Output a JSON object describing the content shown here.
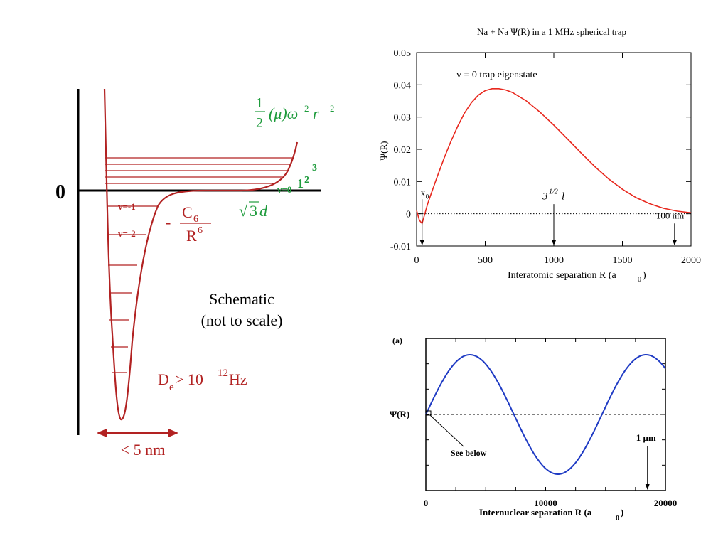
{
  "schematic": {
    "zero_label": "0",
    "levels": [
      "v=-1",
      "v=-2"
    ],
    "harmonic": {
      "frac_num": "1",
      "frac_den": "2",
      "expr": "(μ)ω",
      "exp1": "2",
      "r": "r",
      "exp2": "2"
    },
    "c6": {
      "minus": "-",
      "numerator": "C",
      "num_sub": "6",
      "denominator": "R",
      "den_sup": "6"
    },
    "v0_label": {
      "base": "v=0",
      "exps": "1",
      "sup1": "2",
      "sup2": "3"
    },
    "sqrt3d": {
      "radical": "√",
      "value": "3",
      "d": "d"
    },
    "note_line1": "Schematic",
    "note_line2": "(not to scale)",
    "depth": {
      "D": "D",
      "sub": "e",
      "rest": " > 10",
      "sup": "12",
      "unit": " Hz"
    },
    "width_label": "< 5 nm",
    "colors": {
      "curve": "#b22222",
      "green": "#1e9b3c"
    }
  },
  "chart_data": [
    {
      "type": "line",
      "title": "Na + Na Ψ(R) in a 1 MHz spherical trap",
      "xlabel": "Interatomic separation R (a",
      "xlabel_sub": "0",
      "xlabel_close": ")",
      "ylabel": "Ψ(R)",
      "xlim": [
        0,
        2000
      ],
      "ylim": [
        -0.01,
        0.05
      ],
      "xticks": [
        0,
        500,
        1000,
        1500,
        2000
      ],
      "yticks": [
        -0.01,
        0,
        0.01,
        0.02,
        0.03,
        0.04,
        0.05
      ],
      "ytick_labels": [
        "-0.01",
        "0",
        "0.01",
        "0.02",
        "0.03",
        "0.04",
        "0.05"
      ],
      "annotation": "v = 0 trap eigenstate",
      "markers": [
        {
          "x": 40,
          "label": "x",
          "label_sub": "0"
        },
        {
          "x": 1000,
          "label": "3",
          "label_sup": "1/2",
          "label_tail": "l"
        },
        {
          "x": 1880,
          "label": "100 nm"
        }
      ],
      "series": [
        {
          "color": "#e8281e",
          "x": [
            0,
            20,
            40,
            60,
            80,
            100,
            150,
            200,
            250,
            300,
            350,
            400,
            450,
            500,
            550,
            600,
            650,
            700,
            800,
            900,
            1000,
            1100,
            1200,
            1300,
            1400,
            1500,
            1600,
            1700,
            1800,
            1900,
            2000
          ],
          "y": [
            0.001,
            -0.002,
            -0.003,
            0.0,
            0.003,
            0.0055,
            0.0115,
            0.0172,
            0.0225,
            0.0272,
            0.0313,
            0.0345,
            0.0368,
            0.0382,
            0.0388,
            0.0388,
            0.0384,
            0.0376,
            0.035,
            0.0315,
            0.0275,
            0.0232,
            0.0188,
            0.0146,
            0.0108,
            0.0076,
            0.005,
            0.0031,
            0.0017,
            0.0008,
            0.0003
          ]
        }
      ],
      "baseline": 0
    },
    {
      "type": "line",
      "panel_label": "(a)",
      "xlabel": "Internuclear separation R (a",
      "xlabel_sub": "0",
      "xlabel_close": ")",
      "ylabel": "Ψ(R)",
      "xlim": [
        0,
        20000
      ],
      "ylim": [
        -1.2,
        1.2
      ],
      "xticks": [
        0,
        10000,
        20000
      ],
      "annotation": "See below",
      "marker": {
        "x": 18500,
        "label": "1 μm"
      },
      "series": [
        {
          "color": "#1f3bc4",
          "amplitude": 1.0,
          "wavelength": 14700,
          "phase_start": 0,
          "x_end": 20000
        }
      ],
      "baseline": 0
    }
  ]
}
